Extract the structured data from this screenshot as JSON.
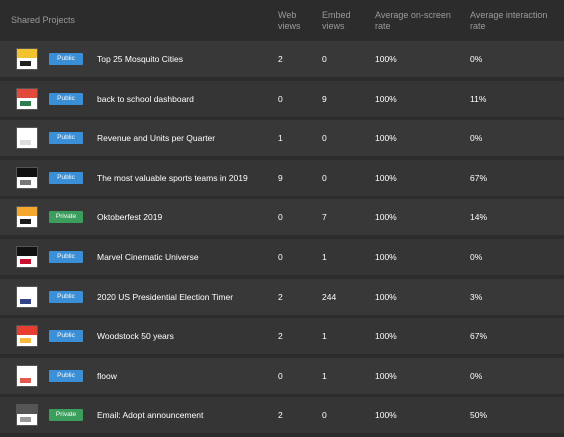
{
  "header": {
    "title": "Shared Projects",
    "columns": {
      "web_views": "Web views",
      "embed_views": "Embed views",
      "onscreen_rate": "Average on-screen rate",
      "interaction_rate": "Average interaction rate"
    }
  },
  "colors": {
    "public": "#3a8fd6",
    "private": "#3c9e5c"
  },
  "projects": [
    {
      "name": "Top 25 Mosquito Cities",
      "visibility": "Public",
      "web_views": "2",
      "embed_views": "0",
      "onscreen_rate": "100%",
      "interaction_rate": "0%",
      "thumb": [
        "#f2c230",
        "#222222"
      ]
    },
    {
      "name": "back to school dashboard",
      "visibility": "Public",
      "web_views": "0",
      "embed_views": "9",
      "onscreen_rate": "100%",
      "interaction_rate": "11%",
      "thumb": [
        "#e24a3b",
        "#2e7d4f"
      ]
    },
    {
      "name": "Revenue and Units per Quarter",
      "visibility": "Public",
      "web_views": "1",
      "embed_views": "0",
      "onscreen_rate": "100%",
      "interaction_rate": "0%",
      "thumb": [
        "#ffffff",
        "#dddddd"
      ]
    },
    {
      "name": "The most valuable sports teams in 2019",
      "visibility": "Public",
      "web_views": "9",
      "embed_views": "0",
      "onscreen_rate": "100%",
      "interaction_rate": "67%",
      "thumb": [
        "#111111",
        "#777777"
      ]
    },
    {
      "name": "Oktoberfest 2019",
      "visibility": "Private",
      "web_views": "0",
      "embed_views": "7",
      "onscreen_rate": "100%",
      "interaction_rate": "14%",
      "thumb": [
        "#f3a72c",
        "#1b1b1b"
      ]
    },
    {
      "name": "Marvel Cinematic Universe",
      "visibility": "Public",
      "web_views": "0",
      "embed_views": "1",
      "onscreen_rate": "100%",
      "interaction_rate": "0%",
      "thumb": [
        "#111111",
        "#c8102e"
      ]
    },
    {
      "name": "2020 US Presidential Election Timer",
      "visibility": "Public",
      "web_views": "2",
      "embed_views": "244",
      "onscreen_rate": "100%",
      "interaction_rate": "3%",
      "thumb": [
        "#ffffff",
        "#334488"
      ]
    },
    {
      "name": "Woodstock 50 years",
      "visibility": "Public",
      "web_views": "2",
      "embed_views": "1",
      "onscreen_rate": "100%",
      "interaction_rate": "67%",
      "thumb": [
        "#e83e2f",
        "#f6b93b"
      ]
    },
    {
      "name": "floow",
      "visibility": "Public",
      "web_views": "0",
      "embed_views": "1",
      "onscreen_rate": "100%",
      "interaction_rate": "0%",
      "thumb": [
        "#ffffff",
        "#e05a4f"
      ]
    },
    {
      "name": "Email: Adopt announcement",
      "visibility": "Private",
      "web_views": "2",
      "embed_views": "0",
      "onscreen_rate": "100%",
      "interaction_rate": "50%",
      "thumb": [
        "#555555",
        "#999999"
      ]
    }
  ]
}
